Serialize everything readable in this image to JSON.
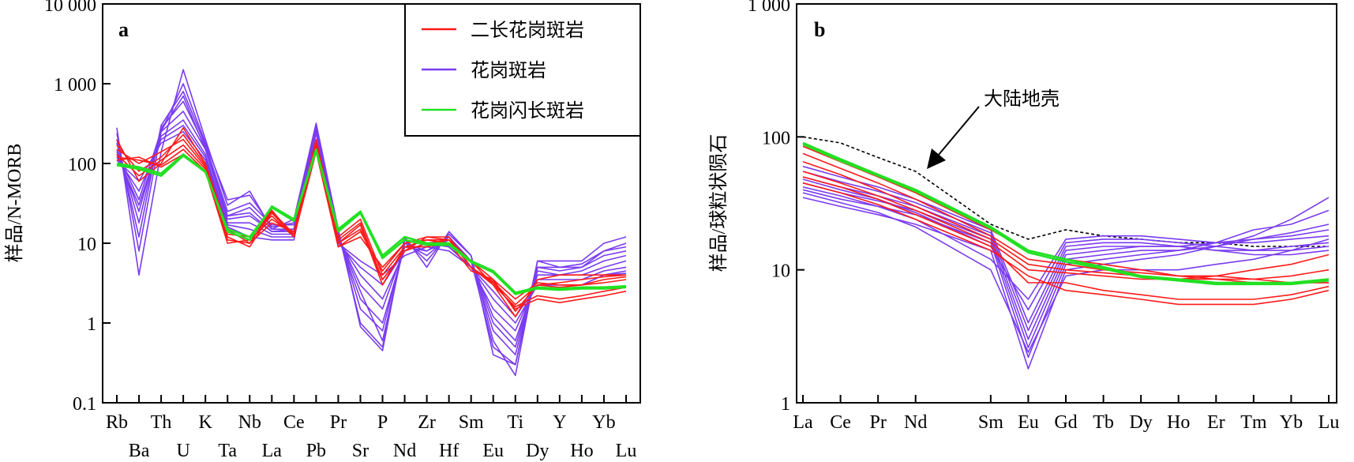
{
  "colors": {
    "ejt_line": "#ff1a1a",
    "gf_line": "#7a3cf0",
    "gg_line": "#22e022",
    "crust_line": "#000000"
  },
  "chart_data": [
    {
      "type": "line",
      "panel_label": "a",
      "ylabel": "样品/N-MORB",
      "yscale": "log",
      "ylim": [
        0.1,
        10000
      ],
      "yticks": [
        "0.1",
        "1",
        "10",
        "100",
        "1 000",
        "10 000"
      ],
      "categories": [
        "Rb",
        "Ba",
        "Th",
        "U",
        "K",
        "Ta",
        "Nb",
        "La",
        "Ce",
        "Pb",
        "Pr",
        "Sr",
        "P",
        "Nd",
        "Zr",
        "Hf",
        "Sm",
        "Eu",
        "Ti",
        "Dy",
        "Y",
        "Ho",
        "Yb",
        "Lu"
      ],
      "legend": [
        {
          "label": "二长花岗斑岩",
          "color_key": "ejt_line"
        },
        {
          "label": "花岗斑岩",
          "color_key": "gf_line"
        },
        {
          "label": "花岗闪长斑岩",
          "color_key": "gg_line"
        }
      ],
      "series": [
        {
          "group": "花岗斑岩",
          "values": [
            280,
            4,
            140,
            1500,
            200,
            30,
            45,
            15,
            20,
            320,
            15,
            0.9,
            0.45,
            12,
            5,
            14,
            7,
            0.6,
            0.22,
            6,
            6,
            6,
            10,
            12
          ]
        },
        {
          "group": "花岗斑岩",
          "values": [
            240,
            8,
            250,
            1000,
            180,
            35,
            40,
            16,
            18,
            300,
            14,
            1,
            0.5,
            11,
            6,
            13,
            7,
            0.4,
            0.3,
            5,
            5,
            5,
            8,
            9
          ]
        },
        {
          "group": "花岗斑岩",
          "values": [
            200,
            12,
            300,
            800,
            170,
            25,
            32,
            17,
            17,
            290,
            13,
            1.5,
            0.8,
            10,
            7,
            12,
            6,
            0.8,
            0.4,
            5,
            4.5,
            5,
            7,
            8
          ]
        },
        {
          "group": "花岗斑岩",
          "values": [
            180,
            18,
            280,
            600,
            160,
            22,
            28,
            15,
            15,
            280,
            12,
            2,
            1,
            9,
            8,
            11,
            6,
            1,
            0.5,
            4.5,
            4,
            4.5,
            6,
            7
          ]
        },
        {
          "group": "花岗斑岩",
          "values": [
            150,
            25,
            250,
            450,
            150,
            20,
            22,
            14,
            14,
            270,
            12,
            3,
            1.5,
            9,
            9,
            10,
            6,
            1.2,
            0.6,
            4,
            4,
            4,
            5,
            6
          ]
        },
        {
          "group": "花岗斑岩",
          "values": [
            130,
            30,
            220,
            350,
            130,
            18,
            18,
            13,
            13,
            260,
            11,
            4,
            2,
            8,
            10,
            9,
            5,
            1.5,
            0.8,
            3.5,
            3.5,
            3.5,
            4.5,
            5
          ]
        },
        {
          "group": "花岗斑岩",
          "values": [
            120,
            45,
            200,
            300,
            120,
            17,
            15,
            12,
            12,
            250,
            10,
            5,
            3,
            8,
            10,
            9,
            5,
            2,
            1,
            3,
            3,
            3,
            4,
            4.5
          ]
        },
        {
          "group": "花岗斑岩",
          "values": [
            110,
            60,
            180,
            250,
            110,
            16,
            12,
            11,
            11,
            240,
            10,
            6,
            4,
            7,
            9,
            8,
            5,
            2.5,
            1.2,
            3,
            3,
            3,
            4,
            4.2
          ]
        },
        {
          "group": "花岗斑岩",
          "values": [
            140,
            35,
            260,
            700,
            150,
            22,
            24,
            14,
            15,
            290,
            12,
            2.5,
            0.6,
            10,
            8,
            12,
            6,
            0.5,
            0.3,
            6,
            5,
            5.5,
            8,
            10
          ]
        },
        {
          "group": "二长花岗斑岩",
          "values": [
            200,
            60,
            100,
            280,
            100,
            15,
            10,
            18,
            14,
            200,
            12,
            20,
            4,
            9,
            9,
            10,
            6,
            3,
            1.2,
            3.5,
            4,
            4,
            4,
            4
          ]
        },
        {
          "group": "二长花岗斑岩",
          "values": [
            170,
            80,
            120,
            230,
            95,
            14,
            11,
            20,
            13,
            180,
            11,
            18,
            3.5,
            8,
            10,
            11,
            6,
            3.5,
            1.4,
            3,
            3.2,
            3.5,
            3.8,
            4
          ]
        },
        {
          "group": "二长花岗斑岩",
          "values": [
            150,
            100,
            140,
            200,
            90,
            13,
            12,
            22,
            12,
            170,
            10,
            17,
            3,
            9,
            11,
            11,
            5,
            3.2,
            1.5,
            2,
            1.8,
            2,
            2.2,
            2.5
          ]
        },
        {
          "group": "二长花岗斑岩",
          "values": [
            130,
            70,
            110,
            170,
            85,
            12,
            9,
            24,
            12,
            160,
            10,
            15,
            3.5,
            8,
            12,
            12,
            5,
            3,
            1.6,
            2.2,
            2,
            2.2,
            2.5,
            2.8
          ]
        },
        {
          "group": "二长花岗斑岩",
          "values": [
            120,
            110,
            95,
            150,
            80,
            11,
            10,
            25,
            13,
            150,
            9,
            14,
            4.5,
            10,
            12,
            11,
            5,
            3.3,
            1.7,
            3,
            2.8,
            3,
            3.2,
            3.5
          ]
        },
        {
          "group": "二长花岗斑岩",
          "values": [
            110,
            120,
            90,
            130,
            80,
            10,
            11,
            26,
            12,
            140,
            9,
            12,
            5,
            10,
            11,
            10,
            4.5,
            3.5,
            2,
            3.2,
            3,
            3,
            3.5,
            3.8
          ]
        },
        {
          "group": "花岗闪长斑岩",
          "values": [
            100,
            90,
            75,
            130,
            80,
            14,
            11,
            29,
            20,
            150,
            15,
            25,
            7,
            12,
            10,
            10,
            6,
            4.5,
            2.4,
            2.8,
            2.7,
            2.8,
            2.8,
            2.9
          ]
        },
        {
          "group": "花岗闪长斑岩",
          "values": [
            95,
            85,
            70,
            125,
            78,
            15,
            12,
            28,
            19,
            145,
            14,
            24,
            6.5,
            11,
            9.5,
            9.5,
            5.8,
            4.3,
            2.3,
            2.7,
            2.6,
            2.7,
            2.7,
            2.8
          ]
        }
      ]
    },
    {
      "type": "line",
      "panel_label": "b",
      "ylabel": "样品/球粒状陨石",
      "yscale": "log",
      "ylim": [
        1,
        1000
      ],
      "yticks": [
        "1",
        "10",
        "100",
        "1 000"
      ],
      "categories": [
        "La",
        "Ce",
        "Pr",
        "Nd",
        "Sm",
        "Eu",
        "Gd",
        "Tb",
        "Dy",
        "Ho",
        "Er",
        "Tm",
        "Yb",
        "Lu"
      ],
      "x_positions": [
        0,
        1,
        2,
        3,
        5,
        6,
        7,
        8,
        9,
        10,
        11,
        12,
        13,
        14
      ],
      "annotation": "大陆地壳",
      "crust": {
        "values": [
          100,
          90,
          70,
          55,
          22,
          17,
          20,
          18,
          17,
          16,
          16,
          15,
          15,
          15
        ]
      },
      "series": [
        {
          "group": "花岗斑岩",
          "values": [
            35,
            30,
            26,
            22,
            14,
            1.8,
            10,
            11,
            12,
            13,
            15,
            18,
            24,
            35
          ]
        },
        {
          "group": "花岗斑岩",
          "values": [
            40,
            34,
            30,
            26,
            16,
            2.2,
            11,
            12,
            13,
            14,
            16,
            20,
            22,
            28
          ]
        },
        {
          "group": "花岗斑岩",
          "values": [
            45,
            38,
            33,
            28,
            17,
            2.6,
            12,
            13,
            14,
            14,
            15,
            17,
            19,
            22
          ]
        },
        {
          "group": "花岗斑岩",
          "values": [
            50,
            42,
            36,
            30,
            18,
            3,
            13,
            14,
            15,
            15,
            16,
            17,
            18,
            20
          ]
        },
        {
          "group": "花岗斑岩",
          "values": [
            55,
            46,
            39,
            32,
            19,
            3.5,
            14,
            15,
            15,
            15,
            14,
            14,
            15,
            16
          ]
        },
        {
          "group": "花岗斑岩",
          "values": [
            60,
            50,
            42,
            34,
            20,
            4,
            15,
            16,
            16,
            15,
            14,
            13,
            13,
            14
          ]
        },
        {
          "group": "花岗斑岩",
          "values": [
            48,
            40,
            34,
            27,
            15,
            5,
            16,
            17,
            17,
            16,
            15,
            14,
            14,
            15
          ]
        },
        {
          "group": "花岗斑岩",
          "values": [
            42,
            36,
            30,
            24,
            12,
            6,
            17,
            18,
            18,
            17,
            16,
            16,
            17,
            18
          ]
        },
        {
          "group": "花岗斑岩",
          "values": [
            38,
            32,
            27,
            21,
            10,
            2.4,
            9,
            10,
            10,
            10,
            11,
            12,
            14,
            17
          ]
        },
        {
          "group": "二长花岗斑岩",
          "values": [
            85,
            65,
            50,
            38,
            20,
            14,
            12,
            11,
            10,
            9,
            9,
            8.5,
            8,
            8
          ]
        },
        {
          "group": "二长花岗斑岩",
          "values": [
            75,
            58,
            45,
            34,
            18,
            12,
            11,
            10,
            9.5,
            9,
            8.5,
            8,
            8,
            8
          ]
        },
        {
          "group": "二长花岗斑岩",
          "values": [
            65,
            52,
            40,
            30,
            17,
            11,
            10,
            9.5,
            9,
            8.5,
            8.5,
            8.5,
            9,
            10
          ]
        },
        {
          "group": "二长花岗斑岩",
          "values": [
            55,
            45,
            36,
            28,
            16,
            10,
            9.5,
            9,
            8.5,
            8.5,
            9,
            10,
            11,
            13
          ]
        },
        {
          "group": "二长花岗斑岩",
          "values": [
            50,
            42,
            34,
            26,
            15,
            8,
            8,
            7,
            6.5,
            6,
            6,
            6,
            6.5,
            7.5
          ]
        },
        {
          "group": "二长花岗斑岩",
          "values": [
            45,
            38,
            31,
            24,
            14,
            9,
            7,
            6.5,
            6,
            5.5,
            5.5,
            5.5,
            6,
            7
          ]
        },
        {
          "group": "花岗闪长斑岩",
          "values": [
            90,
            68,
            52,
            40,
            21,
            14,
            12,
            10.5,
            9,
            8.5,
            8,
            8,
            8,
            8.5
          ]
        },
        {
          "group": "花岗闪长斑岩",
          "values": [
            88,
            66,
            51,
            39,
            20.5,
            13.5,
            11.5,
            10.2,
            8.8,
            8.3,
            7.8,
            7.8,
            7.8,
            8.3
          ]
        }
      ]
    }
  ]
}
